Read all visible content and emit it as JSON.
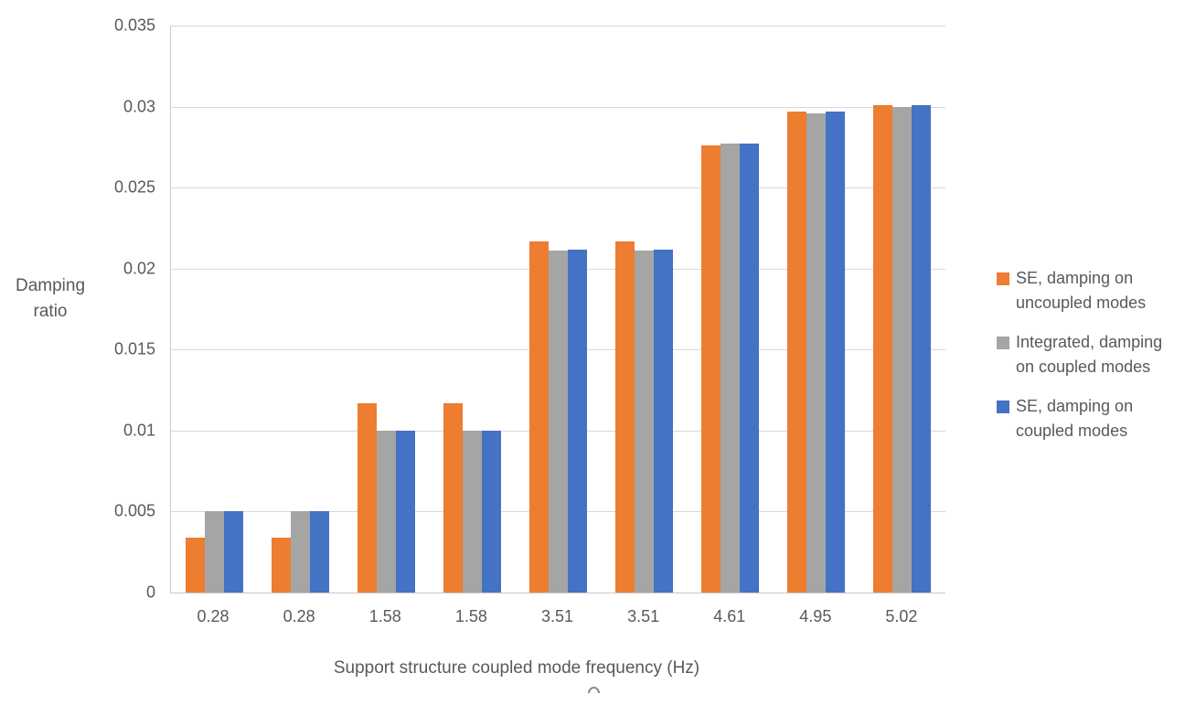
{
  "chart_data": {
    "type": "bar",
    "title": "",
    "xlabel": "Support structure coupled mode frequency (Hz)",
    "ylabel": "Damping ratio",
    "ylabel_lines": [
      "Damping",
      "ratio"
    ],
    "ylim": [
      0,
      0.035
    ],
    "ytick_step": 0.005,
    "yticks": [
      "0.035",
      "0.03",
      "0.025",
      "0.02",
      "0.015",
      "0.01",
      "0.005",
      "0"
    ],
    "categories": [
      "0.28",
      "0.28",
      "1.58",
      "1.58",
      "3.51",
      "3.51",
      "4.61",
      "4.95",
      "5.02"
    ],
    "grid": true,
    "legend_position": "right",
    "series": [
      {
        "name": "SE, damping on uncoupled modes",
        "label_lines": [
          "SE, damping on",
          "uncoupled modes"
        ],
        "color": "#ED7D31",
        "values": [
          0.0034,
          0.0034,
          0.0117,
          0.0117,
          0.0217,
          0.0217,
          0.0276,
          0.0297,
          0.0301
        ]
      },
      {
        "name": "Integrated, damping on coupled modes",
        "label_lines": [
          "Integrated, damping",
          "on coupled modes"
        ],
        "color": "#A5A5A5",
        "values": [
          0.005,
          0.005,
          0.01,
          0.01,
          0.0211,
          0.0211,
          0.0277,
          0.0296,
          0.03
        ]
      },
      {
        "name": "SE, damping on coupled modes",
        "label_lines": [
          "SE, damping on",
          "coupled modes"
        ],
        "color": "#4472C4",
        "values": [
          0.005,
          0.005,
          0.01,
          0.01,
          0.0212,
          0.0212,
          0.0277,
          0.0297,
          0.0301
        ]
      }
    ]
  },
  "palette": {
    "text": "#595959",
    "gridline": "#D9D9D9",
    "axis_line": "#C9C9C9",
    "background": "#FFFFFF"
  }
}
